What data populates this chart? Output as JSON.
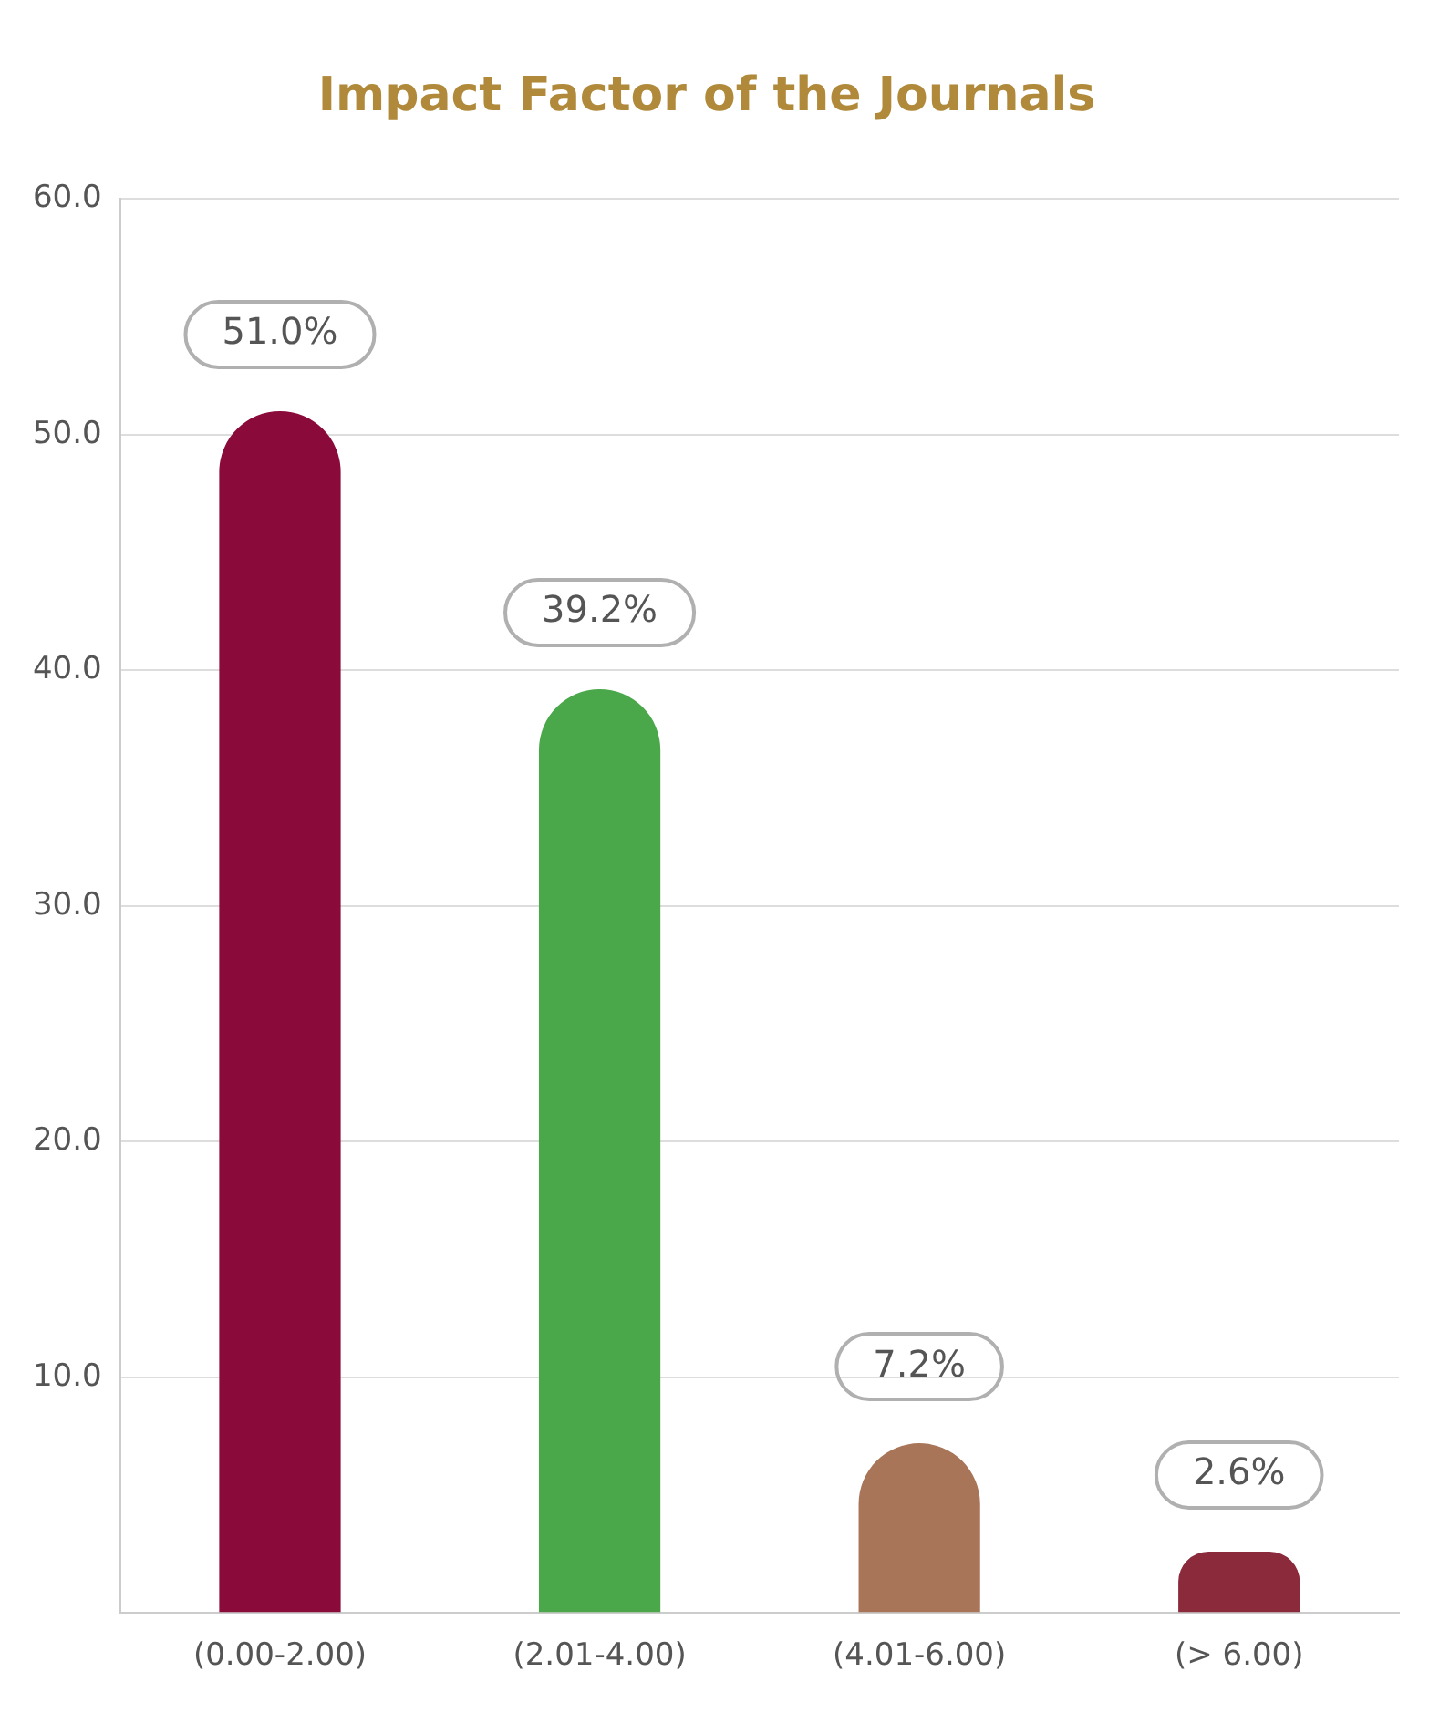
{
  "chart_data": {
    "type": "bar",
    "title": "Impact Factor of the Journals",
    "categories": [
      "(0.00-2.00)",
      "(2.01-4.00)",
      "(4.01-6.00)",
      "(> 6.00)"
    ],
    "values": [
      51.0,
      39.2,
      7.2,
      2.6
    ],
    "colors": [
      "#8a0a3a",
      "#4aa84a",
      "#a87558",
      "#8a2a3a"
    ],
    "value_labels": [
      "51.0%",
      "39.2%",
      "7.2%",
      "2.6%"
    ],
    "ylim": [
      0,
      60
    ],
    "yticks": [
      {
        "value": 0,
        "label": null
      },
      {
        "value": 10,
        "label": "10.0"
      },
      {
        "value": 20,
        "label": "20.0"
      },
      {
        "value": 30,
        "label": "30.0"
      },
      {
        "value": 40,
        "label": "40.0"
      },
      {
        "value": 50,
        "label": "50.0"
      },
      {
        "value": 60,
        "label": "60.0"
      }
    ],
    "grid": "y",
    "legend": false
  }
}
